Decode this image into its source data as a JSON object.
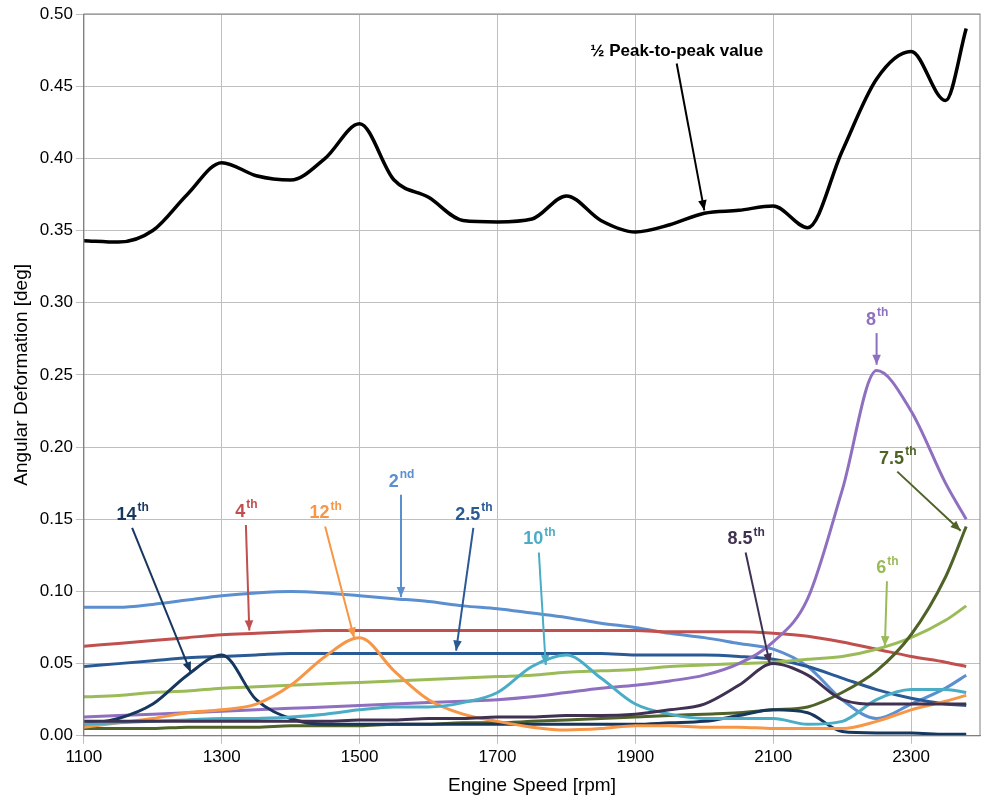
{
  "chart_data": {
    "type": "line",
    "x_label": "Engine Speed [rpm]",
    "y_label": "Angular Deformation [deg]",
    "x": [
      1100,
      1150,
      1200,
      1250,
      1300,
      1350,
      1400,
      1450,
      1500,
      1550,
      1600,
      1650,
      1700,
      1750,
      1800,
      1850,
      1900,
      1950,
      2000,
      2050,
      2100,
      2150,
      2200,
      2250,
      2300,
      2350,
      2380
    ],
    "series": [
      {
        "name": "½ Peak-to-peak value",
        "color": "#000000",
        "values": [
          0.343,
          0.342,
          0.35,
          0.375,
          0.397,
          0.388,
          0.385,
          0.4,
          0.424,
          0.385,
          0.373,
          0.357,
          0.356,
          0.358,
          0.374,
          0.357,
          0.349,
          0.354,
          0.362,
          0.364,
          0.367,
          0.352,
          0.405,
          0.455,
          0.474,
          0.44,
          0.49
        ]
      },
      {
        "name": "2nd",
        "color": "#5b8fd0",
        "values": [
          0.089,
          0.089,
          0.091,
          0.094,
          0.097,
          0.099,
          0.1,
          0.099,
          0.097,
          0.095,
          0.093,
          0.09,
          0.088,
          0.085,
          0.082,
          0.078,
          0.075,
          0.071,
          0.068,
          0.064,
          0.06,
          0.048,
          0.025,
          0.012,
          0.022,
          0.033,
          0.042
        ]
      },
      {
        "name": "4th",
        "color": "#c0504d",
        "values": [
          0.062,
          0.064,
          0.066,
          0.068,
          0.07,
          0.071,
          0.072,
          0.073,
          0.073,
          0.073,
          0.073,
          0.073,
          0.073,
          0.073,
          0.073,
          0.073,
          0.073,
          0.072,
          0.072,
          0.072,
          0.071,
          0.069,
          0.065,
          0.06,
          0.055,
          0.051,
          0.048
        ]
      },
      {
        "name": "2.5th",
        "color": "#2a5a96",
        "values": [
          0.048,
          0.05,
          0.052,
          0.054,
          0.055,
          0.056,
          0.057,
          0.057,
          0.057,
          0.057,
          0.057,
          0.057,
          0.057,
          0.057,
          0.057,
          0.057,
          0.056,
          0.056,
          0.056,
          0.055,
          0.053,
          0.048,
          0.04,
          0.032,
          0.026,
          0.022,
          0.021
        ]
      },
      {
        "name": "6th",
        "color": "#9bbb59",
        "values": [
          0.027,
          0.028,
          0.03,
          0.031,
          0.033,
          0.034,
          0.035,
          0.036,
          0.037,
          0.038,
          0.039,
          0.04,
          0.041,
          0.042,
          0.044,
          0.045,
          0.046,
          0.048,
          0.049,
          0.05,
          0.051,
          0.053,
          0.055,
          0.06,
          0.068,
          0.08,
          0.09
        ]
      },
      {
        "name": "8th",
        "color": "#8f6fbf",
        "values": [
          0.013,
          0.014,
          0.015,
          0.016,
          0.017,
          0.018,
          0.019,
          0.02,
          0.021,
          0.022,
          0.023,
          0.024,
          0.025,
          0.027,
          0.03,
          0.033,
          0.035,
          0.038,
          0.042,
          0.05,
          0.065,
          0.095,
          0.17,
          0.253,
          0.225,
          0.175,
          0.15
        ]
      },
      {
        "name": "7.5th",
        "color": "#4f6228",
        "values": [
          0.005,
          0.005,
          0.005,
          0.006,
          0.006,
          0.006,
          0.007,
          0.007,
          0.007,
          0.008,
          0.008,
          0.009,
          0.009,
          0.01,
          0.011,
          0.012,
          0.013,
          0.014,
          0.015,
          0.016,
          0.018,
          0.02,
          0.03,
          0.045,
          0.07,
          0.11,
          0.145
        ]
      },
      {
        "name": "14th",
        "color": "#17375e",
        "values": [
          0.008,
          0.012,
          0.022,
          0.042,
          0.056,
          0.025,
          0.012,
          0.008,
          0.008,
          0.008,
          0.008,
          0.008,
          0.008,
          0.008,
          0.008,
          0.008,
          0.008,
          0.009,
          0.01,
          0.014,
          0.018,
          0.016,
          0.003,
          0.002,
          0.002,
          0.001,
          0.001
        ]
      },
      {
        "name": "12th",
        "color": "#f79646",
        "values": [
          0.006,
          0.009,
          0.012,
          0.016,
          0.018,
          0.022,
          0.035,
          0.055,
          0.068,
          0.045,
          0.025,
          0.015,
          0.01,
          0.006,
          0.004,
          0.005,
          0.007,
          0.007,
          0.006,
          0.006,
          0.005,
          0.005,
          0.005,
          0.01,
          0.018,
          0.024,
          0.028
        ]
      },
      {
        "name": "10th",
        "color": "#4bacc6",
        "values": [
          0.008,
          0.009,
          0.01,
          0.011,
          0.012,
          0.012,
          0.013,
          0.015,
          0.018,
          0.02,
          0.02,
          0.023,
          0.03,
          0.048,
          0.056,
          0.04,
          0.022,
          0.015,
          0.012,
          0.012,
          0.012,
          0.008,
          0.01,
          0.025,
          0.032,
          0.032,
          0.03
        ]
      },
      {
        "name": "8.5th",
        "color": "#403152",
        "values": [
          0.01,
          0.01,
          0.01,
          0.01,
          0.01,
          0.01,
          0.01,
          0.01,
          0.011,
          0.011,
          0.012,
          0.012,
          0.013,
          0.013,
          0.014,
          0.014,
          0.015,
          0.018,
          0.022,
          0.035,
          0.05,
          0.042,
          0.025,
          0.022,
          0.022,
          0.022,
          0.022
        ]
      }
    ],
    "xlim": [
      1100,
      2400
    ],
    "xticks": [
      1100,
      1300,
      1500,
      1700,
      1900,
      2100,
      2300
    ],
    "ylim": [
      0,
      0.5
    ],
    "yticks": [
      {
        "value": 0,
        "label": "0.00"
      },
      {
        "value": 0.05,
        "label": "0.05"
      },
      {
        "value": 0.1,
        "label": "0.10"
      },
      {
        "value": 0.15,
        "label": "0.15"
      },
      {
        "value": 0.2,
        "label": "0.20"
      },
      {
        "value": 0.25,
        "label": "0.25"
      },
      {
        "value": 0.3,
        "label": "0.30"
      },
      {
        "value": 0.35,
        "label": "0.35"
      },
      {
        "value": 0.4,
        "label": "0.40"
      },
      {
        "value": 0.45,
        "label": "0.45"
      },
      {
        "value": 0.5,
        "label": "0.50"
      }
    ],
    "grid": true
  }
}
